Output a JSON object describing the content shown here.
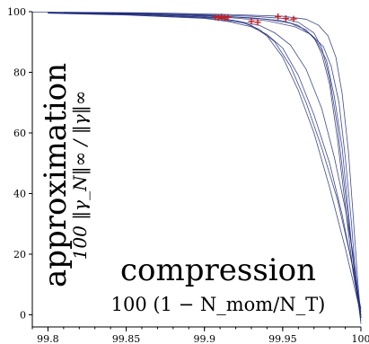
{
  "chart_data": {
    "type": "line",
    "x_label": "compression",
    "x_sublabel": "100 (1 − N_mom/N_T)",
    "y_label": "approximation",
    "y_sublabel": "100 ‖γ_N‖∞ / ‖γ‖∞",
    "xlim": [
      99.79,
      100
    ],
    "ylim": [
      -4,
      100
    ],
    "x_ticks": [
      99.8,
      99.85,
      99.9,
      99.95,
      100
    ],
    "x_tick_labels": [
      "99.8",
      "99.85",
      "99.9",
      "99.95",
      "100"
    ],
    "y_ticks": [
      0,
      20,
      40,
      60,
      80,
      100
    ],
    "y_tick_labels": [
      "0",
      "20",
      "40",
      "60",
      "80",
      "100"
    ],
    "grid": false,
    "line_color": "#1f2a7a",
    "marker_color": "#d11a1a",
    "series": [
      {
        "x": [
          99.79,
          99.85,
          99.9,
          99.93,
          99.95,
          99.96,
          99.97,
          99.975,
          99.98,
          99.985,
          99.99,
          99.995,
          100.0
        ],
        "y": [
          99.9,
          99.6,
          99.0,
          98.5,
          97.8,
          96.5,
          93.0,
          88.0,
          78.0,
          62.0,
          40.0,
          18.0,
          0.0
        ]
      },
      {
        "x": [
          99.8,
          99.85,
          99.9,
          99.93,
          99.95,
          99.96,
          99.97,
          99.975,
          99.98,
          99.985,
          99.99,
          99.995,
          100.0
        ],
        "y": [
          99.8,
          99.5,
          98.8,
          98.0,
          97.0,
          95.5,
          91.5,
          86.0,
          76.0,
          58.0,
          36.0,
          14.0,
          -1.0
        ]
      },
      {
        "x": [
          99.8,
          99.86,
          99.91,
          99.94,
          99.955,
          99.965,
          99.972,
          99.978,
          99.983,
          99.988,
          99.992,
          99.996,
          100.0
        ],
        "y": [
          99.7,
          99.4,
          98.5,
          97.5,
          96.2,
          94.0,
          90.0,
          84.0,
          72.0,
          55.0,
          34.0,
          12.0,
          -2.0
        ]
      },
      {
        "x": [
          99.8,
          99.86,
          99.91,
          99.94,
          99.958,
          99.968,
          99.976,
          99.981,
          99.986,
          99.99,
          99.994,
          99.997,
          100.0
        ],
        "y": [
          99.6,
          99.3,
          98.3,
          97.0,
          95.0,
          92.5,
          88.5,
          82.0,
          70.0,
          52.0,
          30.0,
          10.0,
          -3.0
        ]
      },
      {
        "x": [
          99.81,
          99.87,
          99.92,
          99.95,
          99.965,
          99.973,
          99.979,
          99.984,
          99.988,
          99.992,
          99.995,
          99.998,
          100.0
        ],
        "y": [
          99.8,
          99.6,
          99.0,
          98.5,
          97.5,
          95.5,
          92.0,
          85.0,
          73.0,
          54.0,
          33.0,
          11.0,
          -1.0
        ]
      },
      {
        "x": [
          99.8,
          99.85,
          99.9,
          99.91,
          99.92,
          99.93,
          99.94,
          99.95,
          99.96,
          99.97,
          99.98,
          99.99,
          100.0
        ],
        "y": [
          99.7,
          99.2,
          98.2,
          97.8,
          97.0,
          95.5,
          92.0,
          85.0,
          74.0,
          60.0,
          42.0,
          22.0,
          0.0
        ]
      },
      {
        "x": [
          99.8,
          99.85,
          99.9,
          99.91,
          99.925,
          99.935,
          99.945,
          99.955,
          99.965,
          99.975,
          99.985,
          99.993,
          100.0
        ],
        "y": [
          99.6,
          99.0,
          98.0,
          97.4,
          96.3,
          94.2,
          90.0,
          82.0,
          70.0,
          55.0,
          38.0,
          20.0,
          2.0
        ]
      },
      {
        "x": [
          99.8,
          99.85,
          99.9,
          99.915,
          99.93,
          99.94,
          99.95,
          99.96,
          99.97,
          99.98,
          99.988,
          99.995,
          100.0
        ],
        "y": [
          99.5,
          98.9,
          97.8,
          96.8,
          95.0,
          92.5,
          88.0,
          79.0,
          66.0,
          50.0,
          33.0,
          15.0,
          1.0
        ]
      },
      {
        "x": [
          99.8,
          99.86,
          99.905,
          99.92,
          99.935,
          99.945,
          99.955,
          99.965,
          99.975,
          99.983,
          99.99,
          99.996,
          100.0
        ],
        "y": [
          99.6,
          99.1,
          98.1,
          97.0,
          95.5,
          93.0,
          89.0,
          81.0,
          68.0,
          52.0,
          35.0,
          17.0,
          -1.0
        ]
      }
    ],
    "markers": [
      {
        "x": 99.907,
        "y": 98.2
      },
      {
        "x": 99.909,
        "y": 98.0
      },
      {
        "x": 99.911,
        "y": 98.3
      },
      {
        "x": 99.913,
        "y": 97.9
      },
      {
        "x": 99.915,
        "y": 98.1
      },
      {
        "x": 99.93,
        "y": 96.8
      },
      {
        "x": 99.934,
        "y": 96.5
      },
      {
        "x": 99.947,
        "y": 98.4
      },
      {
        "x": 99.952,
        "y": 97.8
      },
      {
        "x": 99.957,
        "y": 97.6
      }
    ]
  }
}
